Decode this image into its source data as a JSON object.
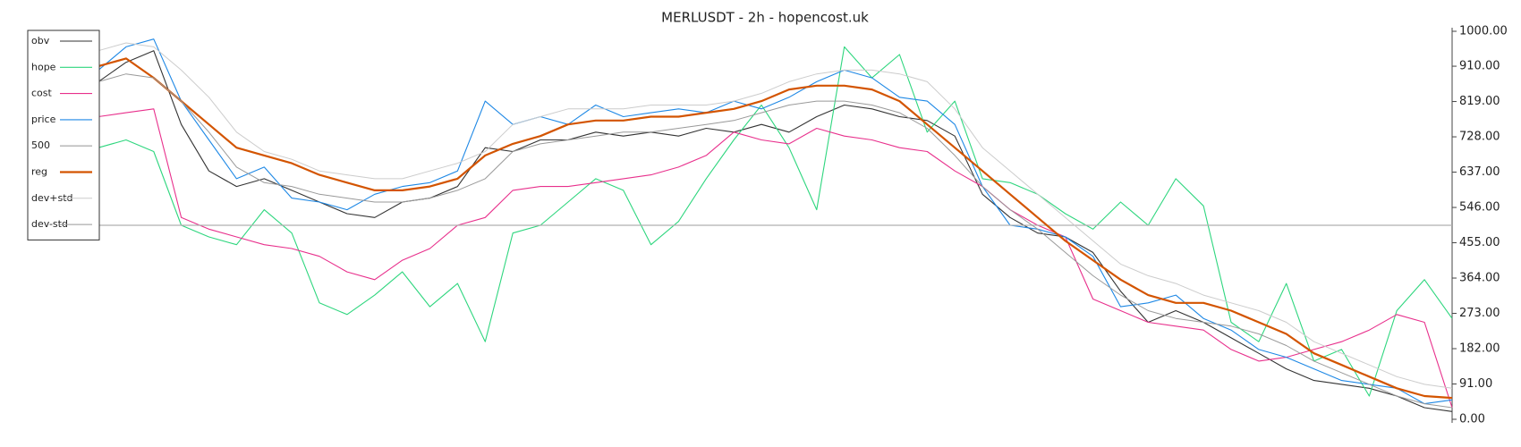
{
  "chart_data": {
    "type": "line",
    "title": "MERLUSDT - 2h - hopencost.uk",
    "ylim": [
      0,
      1000
    ],
    "yticks": [
      {
        "value": 0,
        "label": "0.00"
      },
      {
        "value": 91,
        "label": "91.00"
      },
      {
        "value": 182,
        "label": "182.00"
      },
      {
        "value": 273,
        "label": "273.00"
      },
      {
        "value": 364,
        "label": "364.00"
      },
      {
        "value": 455,
        "label": "455.00"
      },
      {
        "value": 546,
        "label": "546.00"
      },
      {
        "value": 637,
        "label": "637.00"
      },
      {
        "value": 728,
        "label": "728.00"
      },
      {
        "value": 819,
        "label": "819.00"
      },
      {
        "value": 910,
        "label": "910.00"
      },
      {
        "value": 1000,
        "label": "1000.00"
      }
    ],
    "series": [
      {
        "name": "obv",
        "color": "#333333",
        "values": [
          870,
          920,
          950,
          760,
          640,
          600,
          620,
          590,
          560,
          530,
          520,
          560,
          570,
          600,
          700,
          690,
          720,
          720,
          740,
          730,
          740,
          730,
          750,
          740,
          760,
          740,
          780,
          810,
          800,
          780,
          770,
          730,
          580,
          520,
          480,
          470,
          430,
          330,
          250,
          280,
          250,
          210,
          170,
          130,
          100,
          90,
          80,
          60,
          30,
          20
        ]
      },
      {
        "name": "hope",
        "color": "#2ed67e",
        "values": [
          700,
          720,
          690,
          500,
          470,
          450,
          540,
          480,
          300,
          270,
          320,
          380,
          290,
          350,
          200,
          480,
          500,
          560,
          620,
          590,
          450,
          510,
          620,
          720,
          810,
          700,
          540,
          960,
          880,
          940,
          740,
          820,
          620,
          610,
          580,
          530,
          490,
          560,
          500,
          620,
          550,
          250,
          200,
          350,
          150,
          180,
          60,
          280,
          360,
          260
        ]
      },
      {
        "name": "cost",
        "color": "#e8308c",
        "values": [
          780,
          790,
          800,
          520,
          490,
          470,
          450,
          440,
          420,
          380,
          360,
          410,
          440,
          500,
          520,
          590,
          600,
          600,
          610,
          620,
          630,
          650,
          680,
          740,
          720,
          710,
          750,
          730,
          720,
          700,
          690,
          640,
          600,
          540,
          500,
          470,
          310,
          280,
          250,
          240,
          230,
          180,
          150,
          160,
          180,
          200,
          230,
          270,
          250,
          30
        ]
      },
      {
        "name": "price",
        "color": "#1e88e5",
        "values": [
          900,
          960,
          980,
          820,
          720,
          620,
          650,
          570,
          560,
          540,
          580,
          600,
          610,
          640,
          820,
          760,
          780,
          760,
          810,
          780,
          790,
          800,
          790,
          820,
          800,
          830,
          870,
          900,
          880,
          830,
          820,
          760,
          600,
          500,
          490,
          470,
          420,
          290,
          300,
          320,
          260,
          230,
          180,
          160,
          130,
          100,
          90,
          80,
          40,
          50
        ]
      },
      {
        "name": "500",
        "color": "#b0b0b0",
        "values": [
          500,
          500,
          500,
          500,
          500,
          500,
          500,
          500,
          500,
          500,
          500,
          500,
          500,
          500,
          500,
          500,
          500,
          500,
          500,
          500,
          500,
          500,
          500,
          500,
          500,
          500,
          500,
          500,
          500,
          500,
          500,
          500,
          500,
          500,
          500,
          500,
          500,
          500,
          500,
          500,
          500,
          500,
          500,
          500,
          500,
          500,
          500,
          500,
          500,
          500
        ]
      },
      {
        "name": "reg",
        "color": "#d35400",
        "values": [
          910,
          930,
          880,
          820,
          760,
          700,
          680,
          660,
          630,
          610,
          590,
          590,
          600,
          620,
          680,
          710,
          730,
          760,
          770,
          770,
          780,
          780,
          790,
          800,
          820,
          850,
          860,
          860,
          850,
          820,
          760,
          700,
          640,
          580,
          520,
          460,
          410,
          360,
          320,
          300,
          300,
          280,
          250,
          220,
          170,
          140,
          110,
          80,
          60,
          55
        ]
      },
      {
        "name": "dev+std",
        "color": "#cccccc",
        "values": [
          950,
          970,
          960,
          900,
          830,
          740,
          690,
          670,
          640,
          630,
          620,
          620,
          640,
          660,
          690,
          760,
          780,
          800,
          800,
          800,
          810,
          810,
          810,
          820,
          840,
          870,
          890,
          900,
          900,
          890,
          870,
          800,
          700,
          640,
          580,
          520,
          460,
          400,
          370,
          350,
          320,
          300,
          280,
          250,
          200,
          170,
          140,
          110,
          90,
          80
        ]
      },
      {
        "name": "dev-std",
        "color": "#999999",
        "values": [
          870,
          890,
          880,
          820,
          740,
          650,
          610,
          600,
          580,
          570,
          560,
          560,
          570,
          590,
          620,
          690,
          710,
          720,
          730,
          740,
          740,
          750,
          760,
          770,
          790,
          810,
          820,
          820,
          810,
          790,
          750,
          680,
          600,
          540,
          490,
          430,
          370,
          320,
          280,
          260,
          250,
          240,
          220,
          190,
          150,
          120,
          90,
          60,
          40,
          30
        ]
      }
    ]
  }
}
